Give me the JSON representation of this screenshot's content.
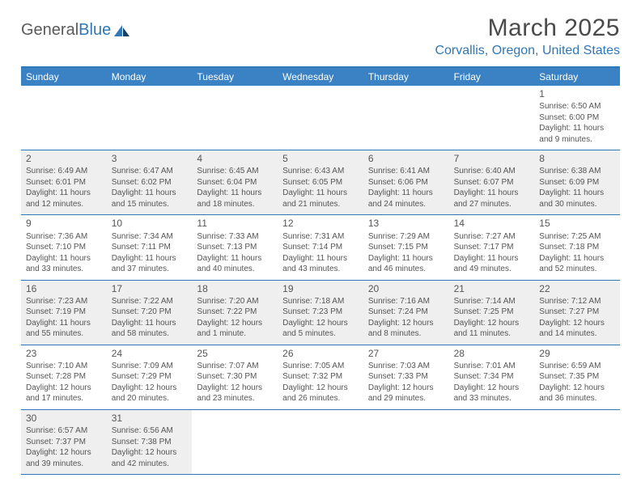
{
  "logo": {
    "text1": "General",
    "text2": "Blue"
  },
  "title": "March 2025",
  "location": "Corvallis, Oregon, United States",
  "colors": {
    "header_bg": "#3a82c4",
    "accent": "#2f77b5",
    "gray_cell": "#efefef",
    "text": "#555555"
  },
  "day_names": [
    "Sunday",
    "Monday",
    "Tuesday",
    "Wednesday",
    "Thursday",
    "Friday",
    "Saturday"
  ],
  "weeks": [
    [
      null,
      null,
      null,
      null,
      null,
      null,
      {
        "n": "1",
        "sunrise": "Sunrise: 6:50 AM",
        "sunset": "Sunset: 6:00 PM",
        "daylight": "Daylight: 11 hours and 9 minutes."
      }
    ],
    [
      {
        "n": "2",
        "sunrise": "Sunrise: 6:49 AM",
        "sunset": "Sunset: 6:01 PM",
        "daylight": "Daylight: 11 hours and 12 minutes."
      },
      {
        "n": "3",
        "sunrise": "Sunrise: 6:47 AM",
        "sunset": "Sunset: 6:02 PM",
        "daylight": "Daylight: 11 hours and 15 minutes."
      },
      {
        "n": "4",
        "sunrise": "Sunrise: 6:45 AM",
        "sunset": "Sunset: 6:04 PM",
        "daylight": "Daylight: 11 hours and 18 minutes."
      },
      {
        "n": "5",
        "sunrise": "Sunrise: 6:43 AM",
        "sunset": "Sunset: 6:05 PM",
        "daylight": "Daylight: 11 hours and 21 minutes."
      },
      {
        "n": "6",
        "sunrise": "Sunrise: 6:41 AM",
        "sunset": "Sunset: 6:06 PM",
        "daylight": "Daylight: 11 hours and 24 minutes."
      },
      {
        "n": "7",
        "sunrise": "Sunrise: 6:40 AM",
        "sunset": "Sunset: 6:07 PM",
        "daylight": "Daylight: 11 hours and 27 minutes."
      },
      {
        "n": "8",
        "sunrise": "Sunrise: 6:38 AM",
        "sunset": "Sunset: 6:09 PM",
        "daylight": "Daylight: 11 hours and 30 minutes."
      }
    ],
    [
      {
        "n": "9",
        "sunrise": "Sunrise: 7:36 AM",
        "sunset": "Sunset: 7:10 PM",
        "daylight": "Daylight: 11 hours and 33 minutes."
      },
      {
        "n": "10",
        "sunrise": "Sunrise: 7:34 AM",
        "sunset": "Sunset: 7:11 PM",
        "daylight": "Daylight: 11 hours and 37 minutes."
      },
      {
        "n": "11",
        "sunrise": "Sunrise: 7:33 AM",
        "sunset": "Sunset: 7:13 PM",
        "daylight": "Daylight: 11 hours and 40 minutes."
      },
      {
        "n": "12",
        "sunrise": "Sunrise: 7:31 AM",
        "sunset": "Sunset: 7:14 PM",
        "daylight": "Daylight: 11 hours and 43 minutes."
      },
      {
        "n": "13",
        "sunrise": "Sunrise: 7:29 AM",
        "sunset": "Sunset: 7:15 PM",
        "daylight": "Daylight: 11 hours and 46 minutes."
      },
      {
        "n": "14",
        "sunrise": "Sunrise: 7:27 AM",
        "sunset": "Sunset: 7:17 PM",
        "daylight": "Daylight: 11 hours and 49 minutes."
      },
      {
        "n": "15",
        "sunrise": "Sunrise: 7:25 AM",
        "sunset": "Sunset: 7:18 PM",
        "daylight": "Daylight: 11 hours and 52 minutes."
      }
    ],
    [
      {
        "n": "16",
        "sunrise": "Sunrise: 7:23 AM",
        "sunset": "Sunset: 7:19 PM",
        "daylight": "Daylight: 11 hours and 55 minutes."
      },
      {
        "n": "17",
        "sunrise": "Sunrise: 7:22 AM",
        "sunset": "Sunset: 7:20 PM",
        "daylight": "Daylight: 11 hours and 58 minutes."
      },
      {
        "n": "18",
        "sunrise": "Sunrise: 7:20 AM",
        "sunset": "Sunset: 7:22 PM",
        "daylight": "Daylight: 12 hours and 1 minute."
      },
      {
        "n": "19",
        "sunrise": "Sunrise: 7:18 AM",
        "sunset": "Sunset: 7:23 PM",
        "daylight": "Daylight: 12 hours and 5 minutes."
      },
      {
        "n": "20",
        "sunrise": "Sunrise: 7:16 AM",
        "sunset": "Sunset: 7:24 PM",
        "daylight": "Daylight: 12 hours and 8 minutes."
      },
      {
        "n": "21",
        "sunrise": "Sunrise: 7:14 AM",
        "sunset": "Sunset: 7:25 PM",
        "daylight": "Daylight: 12 hours and 11 minutes."
      },
      {
        "n": "22",
        "sunrise": "Sunrise: 7:12 AM",
        "sunset": "Sunset: 7:27 PM",
        "daylight": "Daylight: 12 hours and 14 minutes."
      }
    ],
    [
      {
        "n": "23",
        "sunrise": "Sunrise: 7:10 AM",
        "sunset": "Sunset: 7:28 PM",
        "daylight": "Daylight: 12 hours and 17 minutes."
      },
      {
        "n": "24",
        "sunrise": "Sunrise: 7:09 AM",
        "sunset": "Sunset: 7:29 PM",
        "daylight": "Daylight: 12 hours and 20 minutes."
      },
      {
        "n": "25",
        "sunrise": "Sunrise: 7:07 AM",
        "sunset": "Sunset: 7:30 PM",
        "daylight": "Daylight: 12 hours and 23 minutes."
      },
      {
        "n": "26",
        "sunrise": "Sunrise: 7:05 AM",
        "sunset": "Sunset: 7:32 PM",
        "daylight": "Daylight: 12 hours and 26 minutes."
      },
      {
        "n": "27",
        "sunrise": "Sunrise: 7:03 AM",
        "sunset": "Sunset: 7:33 PM",
        "daylight": "Daylight: 12 hours and 29 minutes."
      },
      {
        "n": "28",
        "sunrise": "Sunrise: 7:01 AM",
        "sunset": "Sunset: 7:34 PM",
        "daylight": "Daylight: 12 hours and 33 minutes."
      },
      {
        "n": "29",
        "sunrise": "Sunrise: 6:59 AM",
        "sunset": "Sunset: 7:35 PM",
        "daylight": "Daylight: 12 hours and 36 minutes."
      }
    ],
    [
      {
        "n": "30",
        "sunrise": "Sunrise: 6:57 AM",
        "sunset": "Sunset: 7:37 PM",
        "daylight": "Daylight: 12 hours and 39 minutes."
      },
      {
        "n": "31",
        "sunrise": "Sunrise: 6:56 AM",
        "sunset": "Sunset: 7:38 PM",
        "daylight": "Daylight: 12 hours and 42 minutes."
      },
      null,
      null,
      null,
      null,
      null
    ]
  ]
}
